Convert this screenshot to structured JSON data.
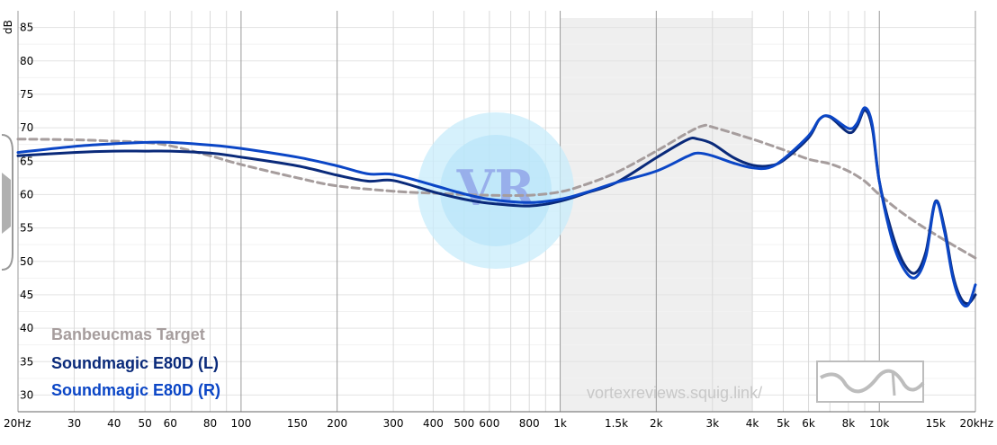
{
  "chart_data": {
    "type": "line",
    "x_scale": "log",
    "xlim": [
      20,
      20000
    ],
    "ylim": [
      27.5,
      87.5
    ],
    "y_unit": "dB",
    "x_ticks": [
      {
        "value": 20,
        "label": "20Hz"
      },
      {
        "value": 30,
        "label": "30"
      },
      {
        "value": 40,
        "label": "40"
      },
      {
        "value": 50,
        "label": "50"
      },
      {
        "value": 60,
        "label": "60"
      },
      {
        "value": 80,
        "label": "80"
      },
      {
        "value": 100,
        "label": "100"
      },
      {
        "value": 150,
        "label": "150"
      },
      {
        "value": 200,
        "label": "200"
      },
      {
        "value": 300,
        "label": "300"
      },
      {
        "value": 400,
        "label": "400"
      },
      {
        "value": 500,
        "label": "500"
      },
      {
        "value": 600,
        "label": "600"
      },
      {
        "value": 800,
        "label": "800"
      },
      {
        "value": 1000,
        "label": "1k"
      },
      {
        "value": 1500,
        "label": "1.5k"
      },
      {
        "value": 2000,
        "label": "2k"
      },
      {
        "value": 3000,
        "label": "3k"
      },
      {
        "value": 4000,
        "label": "4k"
      },
      {
        "value": 5000,
        "label": "5k"
      },
      {
        "value": 6000,
        "label": "6k"
      },
      {
        "value": 8000,
        "label": "8k"
      },
      {
        "value": 10000,
        "label": "10k"
      },
      {
        "value": 15000,
        "label": "15k"
      },
      {
        "value": 20000,
        "label": "20kHz"
      }
    ],
    "y_ticks": [
      30,
      35,
      40,
      45,
      50,
      55,
      60,
      65,
      70,
      75,
      80,
      85
    ],
    "grid_x_major": [
      20,
      100,
      200,
      1000,
      2000,
      10000,
      20000
    ],
    "grid_x_minor": [
      30,
      40,
      50,
      60,
      70,
      80,
      90,
      300,
      400,
      500,
      600,
      700,
      800,
      900,
      3000,
      4000,
      5000,
      6000,
      7000,
      8000,
      9000
    ],
    "shaded_range": [
      1000,
      4000
    ],
    "series": [
      {
        "name": "Banbeucmas Target",
        "color": "#a69d9d",
        "dashed": true,
        "points": [
          [
            20,
            68.3
          ],
          [
            30,
            68.2
          ],
          [
            40,
            68
          ],
          [
            50,
            67.8
          ],
          [
            60,
            67.3
          ],
          [
            80,
            65.8
          ],
          [
            100,
            64.5
          ],
          [
            150,
            62.5
          ],
          [
            200,
            61.3
          ],
          [
            300,
            60.5
          ],
          [
            400,
            60.2
          ],
          [
            500,
            60
          ],
          [
            600,
            59.9
          ],
          [
            800,
            59.9
          ],
          [
            1000,
            60.4
          ],
          [
            1200,
            61.5
          ],
          [
            1500,
            63.3
          ],
          [
            2000,
            66.5
          ],
          [
            2500,
            69.2
          ],
          [
            2800,
            70.3
          ],
          [
            3000,
            70.1
          ],
          [
            4000,
            68.3
          ],
          [
            5000,
            66.7
          ],
          [
            6000,
            65.3
          ],
          [
            7000,
            64.6
          ],
          [
            8000,
            63.5
          ],
          [
            9000,
            62
          ],
          [
            10000,
            60
          ],
          [
            12000,
            57
          ],
          [
            15000,
            54
          ],
          [
            20000,
            50.5
          ]
        ]
      },
      {
        "name": "Soundmagic E80D (L)",
        "color": "#0a2a7a",
        "dashed": false,
        "points": [
          [
            20,
            65.8
          ],
          [
            30,
            66.3
          ],
          [
            40,
            66.5
          ],
          [
            50,
            66.5
          ],
          [
            60,
            66.5
          ],
          [
            80,
            66.2
          ],
          [
            100,
            65.6
          ],
          [
            150,
            64.3
          ],
          [
            200,
            62.9
          ],
          [
            250,
            62
          ],
          [
            300,
            62.1
          ],
          [
            400,
            60.4
          ],
          [
            500,
            59.3
          ],
          [
            600,
            58.7
          ],
          [
            800,
            58.3
          ],
          [
            1000,
            59
          ],
          [
            1200,
            60.2
          ],
          [
            1500,
            61.8
          ],
          [
            2000,
            65.5
          ],
          [
            2500,
            68.2
          ],
          [
            2700,
            68.3
          ],
          [
            3000,
            67.6
          ],
          [
            3500,
            65.5
          ],
          [
            4000,
            64.4
          ],
          [
            4500,
            64.3
          ],
          [
            5000,
            65.1
          ],
          [
            6000,
            68.5
          ],
          [
            6500,
            71.3
          ],
          [
            7000,
            71.6
          ],
          [
            8000,
            69.3
          ],
          [
            8500,
            70.2
          ],
          [
            9000,
            72.6
          ],
          [
            9500,
            70
          ],
          [
            10000,
            62
          ],
          [
            11000,
            54
          ],
          [
            12000,
            49.5
          ],
          [
            13000,
            48.3
          ],
          [
            14000,
            51.5
          ],
          [
            15000,
            59
          ],
          [
            16000,
            55
          ],
          [
            17000,
            48
          ],
          [
            18000,
            44.5
          ],
          [
            19000,
            43.7
          ],
          [
            20000,
            45
          ]
        ]
      },
      {
        "name": "Soundmagic E80D (R)",
        "color": "#0b46c6",
        "dashed": false,
        "points": [
          [
            20,
            66.3
          ],
          [
            30,
            67.2
          ],
          [
            40,
            67.6
          ],
          [
            50,
            67.8
          ],
          [
            60,
            67.8
          ],
          [
            80,
            67.4
          ],
          [
            100,
            66.9
          ],
          [
            150,
            65.6
          ],
          [
            200,
            64.3
          ],
          [
            250,
            63.1
          ],
          [
            300,
            63
          ],
          [
            400,
            61.4
          ],
          [
            500,
            60.1
          ],
          [
            600,
            59.3
          ],
          [
            800,
            58.8
          ],
          [
            1000,
            59.3
          ],
          [
            1200,
            60.3
          ],
          [
            1500,
            61.8
          ],
          [
            2000,
            63.5
          ],
          [
            2500,
            65.7
          ],
          [
            2700,
            66.2
          ],
          [
            3000,
            65.8
          ],
          [
            3500,
            64.7
          ],
          [
            4000,
            64
          ],
          [
            4500,
            64
          ],
          [
            5000,
            65.3
          ],
          [
            6000,
            68.8
          ],
          [
            6500,
            71.3
          ],
          [
            7000,
            71.7
          ],
          [
            8000,
            69.9
          ],
          [
            8500,
            70.6
          ],
          [
            9000,
            73
          ],
          [
            9500,
            70.5
          ],
          [
            10000,
            62
          ],
          [
            11000,
            53
          ],
          [
            12000,
            48.7
          ],
          [
            13000,
            47.6
          ],
          [
            14000,
            50.8
          ],
          [
            15000,
            58.9
          ],
          [
            16000,
            54.5
          ],
          [
            17000,
            47.5
          ],
          [
            18000,
            44
          ],
          [
            19000,
            43.5
          ],
          [
            20000,
            46.5
          ]
        ]
      }
    ]
  },
  "watermark": {
    "text": "vortexreviews.squig.link/",
    "logo_letters": "VR"
  },
  "axis_unit_label": "dB"
}
